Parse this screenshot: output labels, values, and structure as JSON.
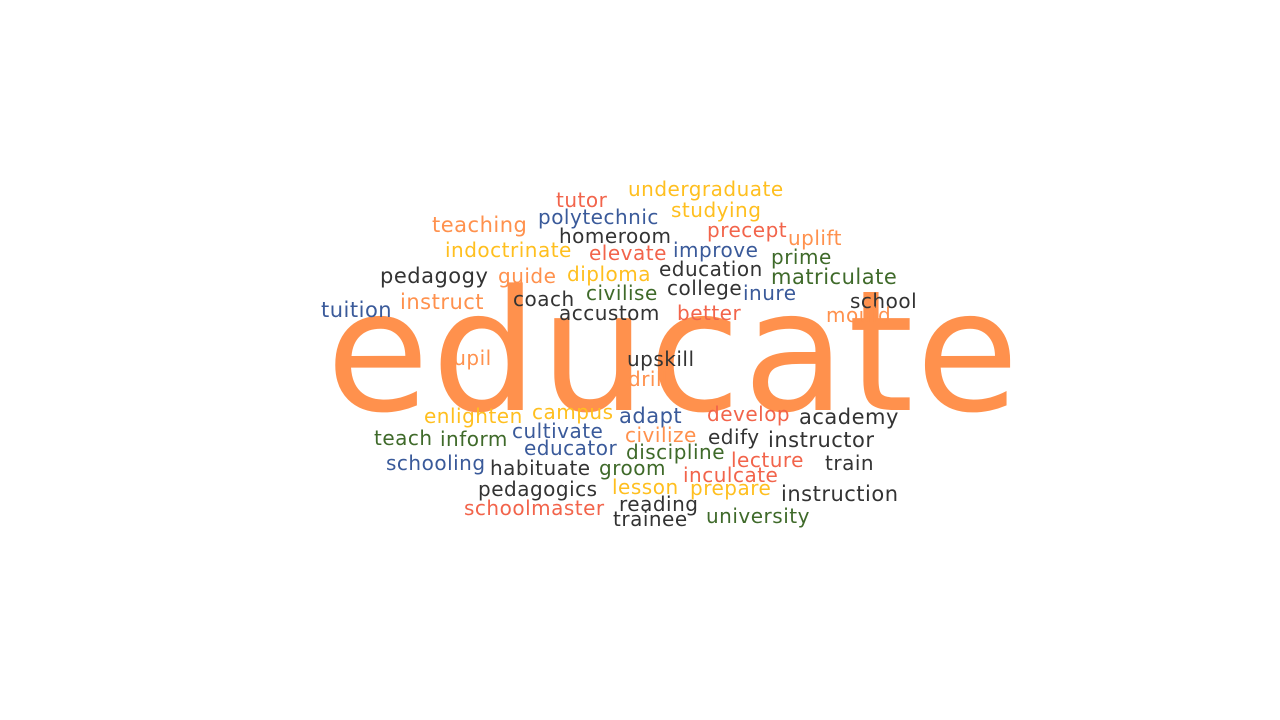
{
  "colors": {
    "orange": "#ff914d",
    "yellow": "#ffbf1f",
    "blue": "#3a5a9a",
    "dark": "#333333",
    "green": "#3f6a2a",
    "red": "#f2644b"
  },
  "cloud": {
    "main_word": "educate",
    "words": [
      {
        "text": "tutor",
        "color": "red"
      },
      {
        "text": "undergraduate",
        "color": "yellow"
      },
      {
        "text": "teaching",
        "color": "orange"
      },
      {
        "text": "polytechnic",
        "color": "blue"
      },
      {
        "text": "studying",
        "color": "yellow"
      },
      {
        "text": "homeroom",
        "color": "dark"
      },
      {
        "text": "precept",
        "color": "red"
      },
      {
        "text": "uplift",
        "color": "orange"
      },
      {
        "text": "indoctrinate",
        "color": "yellow"
      },
      {
        "text": "elevate",
        "color": "red"
      },
      {
        "text": "improve",
        "color": "blue"
      },
      {
        "text": "prime",
        "color": "green"
      },
      {
        "text": "pedagogy",
        "color": "dark"
      },
      {
        "text": "guide",
        "color": "orange"
      },
      {
        "text": "diploma",
        "color": "yellow"
      },
      {
        "text": "education",
        "color": "dark"
      },
      {
        "text": "matriculate",
        "color": "green"
      },
      {
        "text": "tuition",
        "color": "blue"
      },
      {
        "text": "instruct",
        "color": "orange"
      },
      {
        "text": "coach",
        "color": "dark"
      },
      {
        "text": "civilise",
        "color": "green"
      },
      {
        "text": "college",
        "color": "dark"
      },
      {
        "text": "inure",
        "color": "blue"
      },
      {
        "text": "school",
        "color": "dark"
      },
      {
        "text": "accustom",
        "color": "dark"
      },
      {
        "text": "better",
        "color": "red"
      },
      {
        "text": "mould",
        "color": "orange"
      },
      {
        "text": "pupil",
        "color": "orange"
      },
      {
        "text": "upskill",
        "color": "dark"
      },
      {
        "text": "drill",
        "color": "orange"
      },
      {
        "text": "enlighten",
        "color": "yellow"
      },
      {
        "text": "campus",
        "color": "yellow"
      },
      {
        "text": "adapt",
        "color": "blue"
      },
      {
        "text": "develop",
        "color": "red"
      },
      {
        "text": "academy",
        "color": "dark"
      },
      {
        "text": "teach",
        "color": "green"
      },
      {
        "text": "inform",
        "color": "green"
      },
      {
        "text": "cultivate",
        "color": "blue"
      },
      {
        "text": "civilize",
        "color": "orange"
      },
      {
        "text": "edify",
        "color": "dark"
      },
      {
        "text": "instructor",
        "color": "dark"
      },
      {
        "text": "educator",
        "color": "blue"
      },
      {
        "text": "discipline",
        "color": "green"
      },
      {
        "text": "schooling",
        "color": "blue"
      },
      {
        "text": "habituate",
        "color": "dark"
      },
      {
        "text": "groom",
        "color": "green"
      },
      {
        "text": "lecture",
        "color": "red"
      },
      {
        "text": "train",
        "color": "dark"
      },
      {
        "text": "inculcate",
        "color": "red"
      },
      {
        "text": "pedagogics",
        "color": "dark"
      },
      {
        "text": "lesson",
        "color": "yellow"
      },
      {
        "text": "prepare",
        "color": "yellow"
      },
      {
        "text": "instruction",
        "color": "dark"
      },
      {
        "text": "schoolmaster",
        "color": "red"
      },
      {
        "text": "reading",
        "color": "dark"
      },
      {
        "text": "trainee",
        "color": "dark"
      },
      {
        "text": "university",
        "color": "green"
      }
    ]
  }
}
